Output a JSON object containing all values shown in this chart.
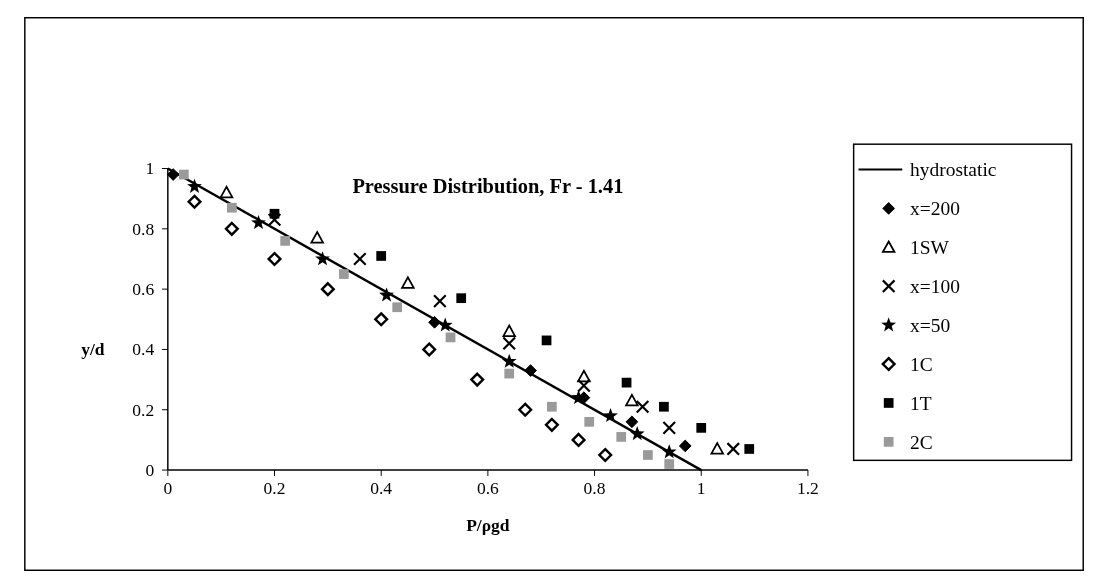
{
  "chart_data": {
    "type": "scatter",
    "title": "Pressure Distribution, Fr - 1.41",
    "xlabel": "P/ρgd",
    "ylabel": "y/d",
    "xlim": [
      0,
      1.2
    ],
    "ylim": [
      0,
      1
    ],
    "xticks": [
      0,
      0.2,
      0.4,
      0.6,
      0.8,
      1,
      1.2
    ],
    "yticks": [
      0,
      0.2,
      0.4,
      0.6,
      0.8,
      1
    ],
    "legend": "right",
    "series": [
      {
        "name": "hydrostatic",
        "type": "line",
        "marker": "none",
        "line_style": "solid",
        "color": "#000000",
        "x": [
          0,
          1
        ],
        "values": [
          1,
          0
        ]
      },
      {
        "name": "x=200",
        "marker": "diamond",
        "color": "#000000",
        "x": [
          0.01,
          0.5,
          0.68,
          0.78,
          0.87,
          0.97
        ],
        "values": [
          0.98,
          0.49,
          0.33,
          0.24,
          0.16,
          0.08
        ]
      },
      {
        "name": "1SW",
        "marker": "triangle",
        "color": "#000000",
        "x": [
          0.11,
          0.28,
          0.45,
          0.64,
          0.78,
          0.87,
          1.03
        ],
        "values": [
          0.92,
          0.77,
          0.62,
          0.46,
          0.31,
          0.23,
          0.07
        ]
      },
      {
        "name": "x=100",
        "marker": "cross",
        "color": "#000000",
        "x": [
          0.2,
          0.36,
          0.51,
          0.64,
          0.78,
          0.89,
          0.94,
          1.06
        ],
        "values": [
          0.83,
          0.7,
          0.56,
          0.42,
          0.28,
          0.21,
          0.14,
          0.07
        ]
      },
      {
        "name": "x=50",
        "marker": "star",
        "color": "#000000",
        "x": [
          0.05,
          0.17,
          0.29,
          0.41,
          0.52,
          0.64,
          0.77,
          0.83,
          0.88,
          0.94
        ],
        "values": [
          0.94,
          0.82,
          0.7,
          0.58,
          0.48,
          0.36,
          0.24,
          0.18,
          0.12,
          0.06
        ]
      },
      {
        "name": "1C",
        "marker": "diamond",
        "color": "#000000",
        "x": [
          0.05,
          0.12,
          0.2,
          0.3,
          0.4,
          0.49,
          0.58,
          0.67,
          0.72,
          0.77,
          0.82
        ],
        "values": [
          0.89,
          0.8,
          0.7,
          0.6,
          0.5,
          0.4,
          0.3,
          0.2,
          0.15,
          0.1,
          0.05
        ]
      },
      {
        "name": "1T",
        "marker": "square",
        "color": "#000000",
        "x": [
          0.2,
          0.4,
          0.55,
          0.71,
          0.86,
          0.93,
          1.0,
          1.09
        ],
        "values": [
          0.85,
          0.71,
          0.57,
          0.43,
          0.29,
          0.21,
          0.14,
          0.07
        ]
      },
      {
        "name": "2C",
        "marker": "square",
        "color": "#9a9a9a",
        "x": [
          0.03,
          0.12,
          0.22,
          0.33,
          0.43,
          0.53,
          0.64,
          0.72,
          0.79,
          0.85,
          0.9,
          0.94
        ],
        "values": [
          0.98,
          0.87,
          0.76,
          0.65,
          0.54,
          0.44,
          0.32,
          0.21,
          0.16,
          0.11,
          0.05,
          0.02
        ]
      }
    ]
  }
}
